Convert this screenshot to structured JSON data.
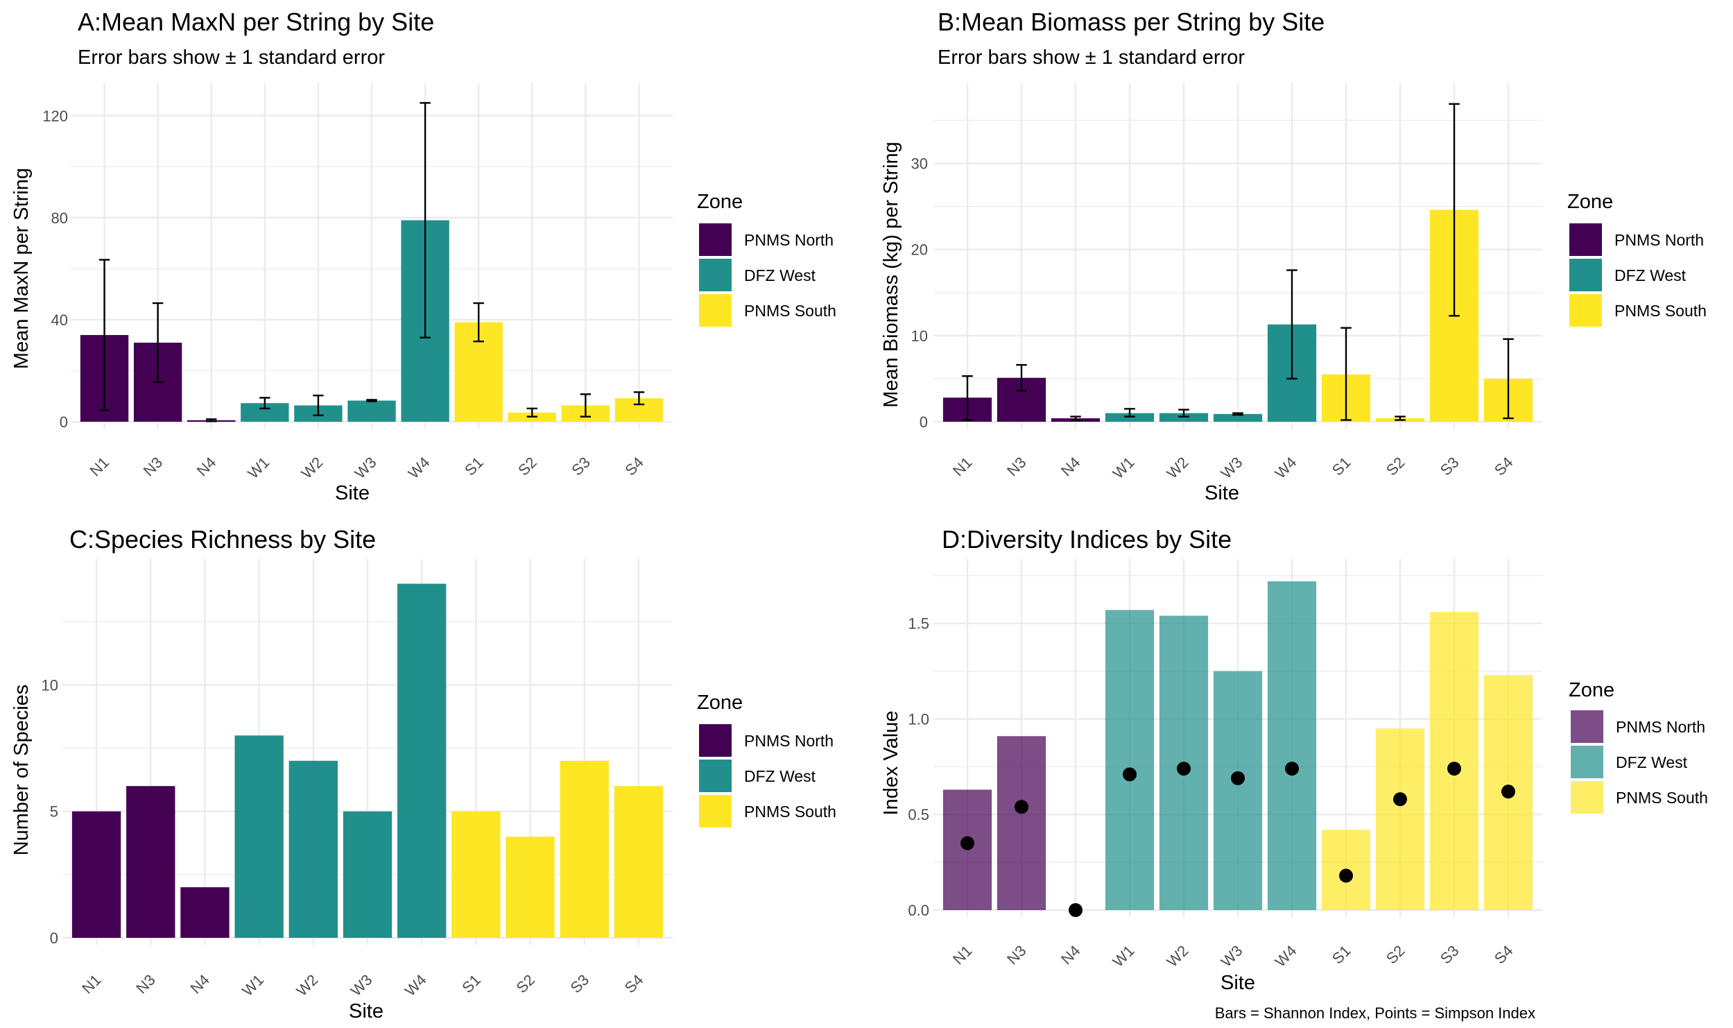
{
  "colors": {
    "PNMS North": "#440154",
    "DFZ West": "#21908C",
    "PNMS South": "#FDE725",
    "grid": "#ebebeb",
    "errorbar": "#000000",
    "point": "#000000"
  },
  "zones": [
    "PNMS North",
    "DFZ West",
    "PNMS South"
  ],
  "chart_data": [
    {
      "id": "A",
      "type": "bar",
      "title": "A:Mean MaxN per String by Site",
      "subtitle": "Error bars show ± 1 standard error",
      "xlabel": "Site",
      "ylabel": "Mean MaxN per String",
      "legend_title": "Zone",
      "legend_position": "right",
      "ylim": [
        0,
        130
      ],
      "yticks": [
        0,
        40,
        80,
        120
      ],
      "categories": [
        "N1",
        "N3",
        "N4",
        "W1",
        "W2",
        "W3",
        "W4",
        "S1",
        "S2",
        "S3",
        "S4"
      ],
      "zone": [
        "PNMS North",
        "PNMS North",
        "PNMS North",
        "DFZ West",
        "DFZ West",
        "DFZ West",
        "DFZ West",
        "PNMS South",
        "PNMS South",
        "PNMS South",
        "PNMS South"
      ],
      "values": [
        34,
        31,
        0.6,
        7.3,
        6.4,
        8.3,
        79,
        39,
        3.6,
        6.4,
        9.2
      ],
      "error_low": [
        4.5,
        15.5,
        0.2,
        5.2,
        2.5,
        8.0,
        33,
        31.5,
        2.0,
        2.0,
        6.8
      ],
      "error_high": [
        63.5,
        46.5,
        1.0,
        9.4,
        10.3,
        8.6,
        125,
        46.5,
        5.2,
        10.8,
        11.6
      ]
    },
    {
      "id": "B",
      "type": "bar",
      "title": "B:Mean Biomass per String by Site",
      "subtitle": "Error bars show ± 1 standard error",
      "xlabel": "Site",
      "ylabel": "Mean Biomass (kg) per String",
      "legend_title": "Zone",
      "legend_position": "right",
      "ylim": [
        0,
        38.5
      ],
      "yticks": [
        0,
        10,
        20,
        30
      ],
      "categories": [
        "N1",
        "N3",
        "N4",
        "W1",
        "W2",
        "W3",
        "W4",
        "S1",
        "S2",
        "S3",
        "S4"
      ],
      "zone": [
        "PNMS North",
        "PNMS North",
        "PNMS North",
        "DFZ West",
        "DFZ West",
        "DFZ West",
        "DFZ West",
        "PNMS South",
        "PNMS South",
        "PNMS South",
        "PNMS South"
      ],
      "values": [
        2.8,
        5.1,
        0.4,
        1.0,
        1.0,
        0.9,
        11.3,
        5.5,
        0.4,
        24.6,
        5.0
      ],
      "error_low": [
        0.2,
        3.6,
        0.2,
        0.6,
        0.6,
        0.8,
        5.0,
        0.2,
        0.2,
        12.3,
        0.4
      ],
      "error_high": [
        5.3,
        6.6,
        0.6,
        1.5,
        1.4,
        1.0,
        17.6,
        10.9,
        0.6,
        36.9,
        9.6
      ]
    },
    {
      "id": "C",
      "type": "bar",
      "title": "C:Species Richness by Site",
      "xlabel": "Site",
      "ylabel": "Number of Species",
      "legend_title": "Zone",
      "legend_position": "right",
      "ylim": [
        0,
        14.7
      ],
      "yticks": [
        0,
        5,
        10
      ],
      "categories": [
        "N1",
        "N3",
        "N4",
        "W1",
        "W2",
        "W3",
        "W4",
        "S1",
        "S2",
        "S3",
        "S4"
      ],
      "zone": [
        "PNMS North",
        "PNMS North",
        "PNMS North",
        "DFZ West",
        "DFZ West",
        "DFZ West",
        "DFZ West",
        "PNMS South",
        "PNMS South",
        "PNMS South",
        "PNMS South"
      ],
      "values": [
        5,
        6,
        2,
        8,
        7,
        5,
        14,
        5,
        4,
        7,
        6
      ]
    },
    {
      "id": "D",
      "type": "bar",
      "title": "D:Diversity Indices by Site",
      "xlabel": "Site",
      "ylabel": "Index Value",
      "legend_title": "Zone",
      "legend_position": "right",
      "caption": "Bars = Shannon Index, Points = Simpson Index",
      "ylim": [
        0,
        1.8
      ],
      "yticks": [
        0.0,
        0.5,
        1.0,
        1.5
      ],
      "ytick_labels": [
        "0.0",
        "0.5",
        "1.0",
        "1.5"
      ],
      "categories": [
        "N1",
        "N3",
        "N4",
        "W1",
        "W2",
        "W3",
        "W4",
        "S1",
        "S2",
        "S3",
        "S4"
      ],
      "zone": [
        "PNMS North",
        "PNMS North",
        "PNMS North",
        "DFZ West",
        "DFZ West",
        "DFZ West",
        "DFZ West",
        "PNMS South",
        "PNMS South",
        "PNMS South",
        "PNMS South"
      ],
      "values": [
        0.63,
        0.91,
        0.0,
        1.57,
        1.54,
        1.25,
        1.72,
        0.42,
        0.95,
        1.56,
        1.23
      ],
      "points": [
        0.35,
        0.54,
        0.0,
        0.71,
        0.74,
        0.69,
        0.74,
        0.18,
        0.58,
        0.74,
        0.62
      ]
    }
  ]
}
